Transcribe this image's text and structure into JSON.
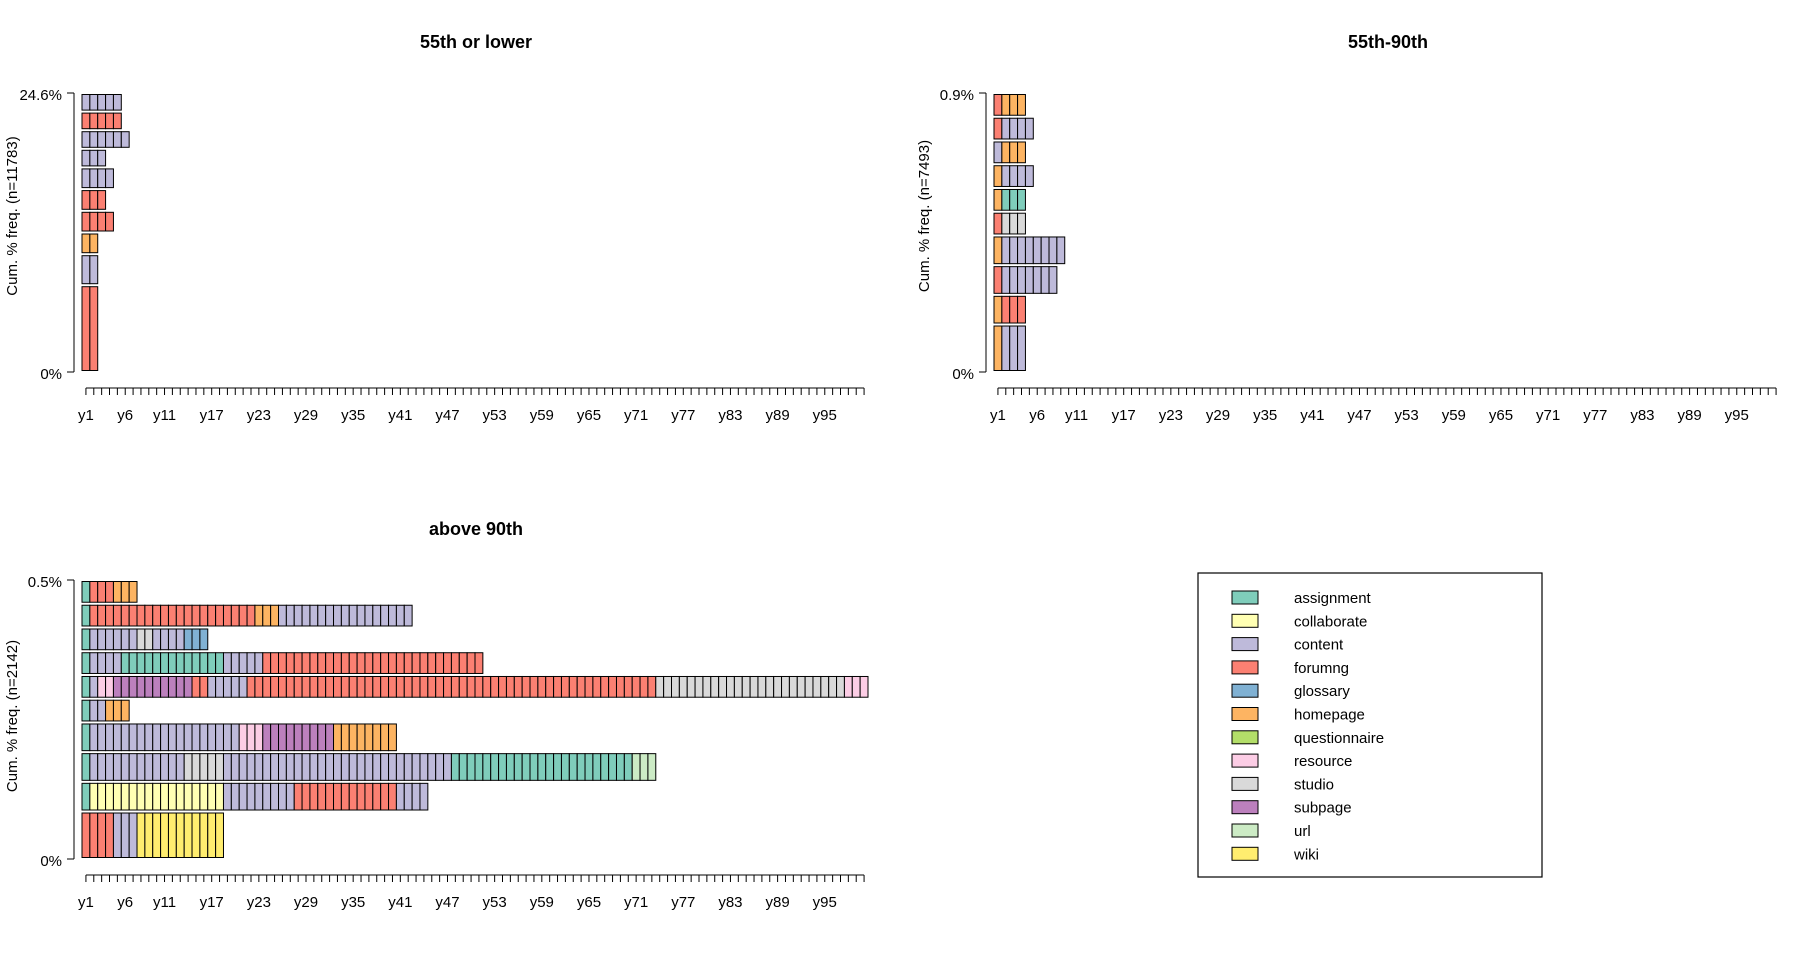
{
  "chart_data": {
    "type": "sequence index plot",
    "x_ticks": [
      "y1",
      "y6",
      "y11",
      "y17",
      "y23",
      "y29",
      "y35",
      "y41",
      "y47",
      "y53",
      "y59",
      "y65",
      "y71",
      "y77",
      "y83",
      "y89",
      "y95"
    ],
    "palette": {
      "assignment": "#7fcdbb",
      "collaborate": "#ffffb3",
      "content": "#bebada",
      "forumng": "#fb8072",
      "glossary": "#80b1d3",
      "homepage": "#fdb462",
      "questionnaire": "#b3de69",
      "resource": "#fccde5",
      "studio": "#d9d9d9",
      "subpage": "#bc80bd",
      "url": "#ccebc5",
      "wiki": "#ffed6f"
    },
    "legend": {
      "items": [
        "assignment",
        "collaborate",
        "content",
        "forumng",
        "glossary",
        "homepage",
        "questionnaire",
        "resource",
        "studio",
        "subpage",
        "url",
        "wiki"
      ]
    },
    "panels": [
      {
        "title": "55th or lower",
        "ylabel": "Cum. % freq. (n=11783)",
        "ytick_top": "24.6%",
        "ytick_bottom": "0%",
        "sequences": [
          {
            "weight": 2.8,
            "runs": [
              [
                "forumng",
                2
              ]
            ]
          },
          {
            "weight": 1.0,
            "runs": [
              [
                "content",
                2
              ]
            ]
          },
          {
            "weight": 0.7,
            "runs": [
              [
                "homepage",
                2
              ]
            ]
          },
          {
            "weight": 0.7,
            "runs": [
              [
                "forumng",
                4
              ]
            ]
          },
          {
            "weight": 0.7,
            "runs": [
              [
                "forumng",
                3
              ]
            ]
          },
          {
            "weight": 0.7,
            "runs": [
              [
                "content",
                4
              ]
            ]
          },
          {
            "weight": 0.6,
            "runs": [
              [
                "content",
                3
              ]
            ]
          },
          {
            "weight": 0.6,
            "runs": [
              [
                "content",
                6
              ]
            ]
          },
          {
            "weight": 0.6,
            "runs": [
              [
                "forumng",
                5
              ]
            ]
          },
          {
            "weight": 0.6,
            "runs": [
              [
                "content",
                5
              ]
            ]
          }
        ]
      },
      {
        "title": "55th-90th",
        "ylabel": "Cum. % freq. (n=7493)",
        "ytick_top": "0.9%",
        "ytick_bottom": "0%",
        "sequences": [
          {
            "weight": 1.6,
            "runs": [
              [
                "homepage",
                1
              ],
              [
                "content",
                3
              ]
            ]
          },
          {
            "weight": 1.0,
            "runs": [
              [
                "homepage",
                1
              ],
              [
                "forumng",
                3
              ]
            ]
          },
          {
            "weight": 1.0,
            "runs": [
              [
                "forumng",
                1
              ],
              [
                "content",
                7
              ]
            ]
          },
          {
            "weight": 1.0,
            "runs": [
              [
                "homepage",
                1
              ],
              [
                "content",
                8
              ]
            ]
          },
          {
            "weight": 0.8,
            "runs": [
              [
                "forumng",
                1
              ],
              [
                "studio",
                3
              ]
            ]
          },
          {
            "weight": 0.8,
            "runs": [
              [
                "homepage",
                1
              ],
              [
                "assignment",
                3
              ]
            ]
          },
          {
            "weight": 0.8,
            "runs": [
              [
                "homepage",
                1
              ],
              [
                "content",
                4
              ]
            ]
          },
          {
            "weight": 0.8,
            "runs": [
              [
                "content",
                1
              ],
              [
                "homepage",
                3
              ]
            ]
          },
          {
            "weight": 0.8,
            "runs": [
              [
                "forumng",
                1
              ],
              [
                "content",
                4
              ]
            ]
          },
          {
            "weight": 0.8,
            "runs": [
              [
                "forumng",
                1
              ],
              [
                "homepage",
                3
              ]
            ]
          }
        ]
      },
      {
        "title": "above 90th",
        "ylabel": "Cum. % freq. (n=2142)",
        "ytick_top": "0.5%",
        "ytick_bottom": "0%",
        "sequences": [
          {
            "weight": 1.6,
            "runs": [
              [
                "forumng",
                4
              ],
              [
                "content",
                3
              ],
              [
                "wiki",
                11
              ]
            ]
          },
          {
            "weight": 1.0,
            "runs": [
              [
                "assignment",
                1
              ],
              [
                "collaborate",
                17
              ],
              [
                "content",
                9
              ],
              [
                "forumng",
                13
              ],
              [
                "content",
                4
              ]
            ]
          },
          {
            "weight": 1.0,
            "runs": [
              [
                "assignment",
                1
              ],
              [
                "content",
                12
              ],
              [
                "studio",
                5
              ],
              [
                "content",
                29
              ],
              [
                "assignment",
                23
              ],
              [
                "url",
                3
              ]
            ]
          },
          {
            "weight": 1.0,
            "runs": [
              [
                "assignment",
                1
              ],
              [
                "content",
                19
              ],
              [
                "resource",
                3
              ],
              [
                "subpage",
                9
              ],
              [
                "homepage",
                8
              ]
            ]
          },
          {
            "weight": 0.8,
            "runs": [
              [
                "assignment",
                1
              ],
              [
                "content",
                2
              ],
              [
                "homepage",
                3
              ]
            ]
          },
          {
            "weight": 0.8,
            "runs": [
              [
                "assignment",
                1
              ],
              [
                "content",
                1
              ],
              [
                "resource",
                2
              ],
              [
                "subpage",
                10
              ],
              [
                "forumng",
                2
              ],
              [
                "content",
                5
              ],
              [
                "forumng",
                52
              ],
              [
                "studio",
                24
              ],
              [
                "resource",
                3
              ]
            ]
          },
          {
            "weight": 0.8,
            "runs": [
              [
                "assignment",
                1
              ],
              [
                "content",
                4
              ],
              [
                "assignment",
                13
              ],
              [
                "content",
                5
              ],
              [
                "forumng",
                28
              ]
            ]
          },
          {
            "weight": 0.8,
            "runs": [
              [
                "assignment",
                1
              ],
              [
                "content",
                6
              ],
              [
                "studio",
                2
              ],
              [
                "content",
                4
              ],
              [
                "glossary",
                3
              ]
            ]
          },
          {
            "weight": 0.8,
            "runs": [
              [
                "assignment",
                1
              ],
              [
                "forumng",
                21
              ],
              [
                "homepage",
                3
              ],
              [
                "content",
                17
              ]
            ]
          },
          {
            "weight": 0.8,
            "runs": [
              [
                "assignment",
                1
              ],
              [
                "forumng",
                3
              ],
              [
                "homepage",
                3
              ]
            ]
          }
        ]
      }
    ]
  }
}
